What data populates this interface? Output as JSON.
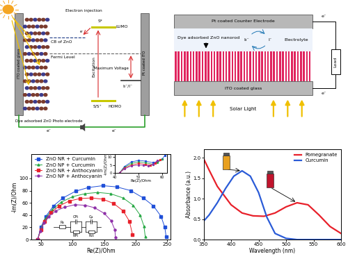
{
  "diagrams": {
    "cell_schematic": {
      "electron_injection": "Electron injection",
      "excited_state": "S*",
      "lumo": "LUMO",
      "cb": "CB of ZnO",
      "fermi": "Fermi Level",
      "max_voltage": "Maximum Voltage",
      "excitation": "Excitation",
      "redox": "I₃⁻/I⁻",
      "ground_state": "S/S⁺",
      "homo": "HOMO",
      "photoelectrode": "Dye adsorbed ZnO Photo electrode",
      "ito": "ITO coated glass",
      "pt": "Pt coated ITO",
      "electron": "e⁻"
    },
    "device_schematic": {
      "counter_electrode": "Pt coated Counter Electrode",
      "nanorod": "Dye adsorbed ZnO nanorod",
      "electrolyte": "Electrolyte",
      "redox_ox": "I₃⁻",
      "redox_red": "I⁻",
      "load": "Load",
      "ito": "ITO coated glass",
      "light": "Solar Light",
      "electron": "e⁻"
    },
    "equivalent_circuit": {
      "rs": "Rs",
      "c1": "CPt",
      "r1": "RPt",
      "c2": "Cμ",
      "r2": "Rct"
    }
  },
  "chart_data": [
    {
      "type": "line",
      "x_label": "Re(Z)/Ohm",
      "y_label": "-Im(Z)/Ohm",
      "xlim": [
        35,
        255
      ],
      "xticks": [
        50,
        100,
        150,
        200,
        250
      ],
      "ylim": [
        0,
        140
      ],
      "yticks": [
        0,
        20,
        40,
        60,
        80,
        100
      ],
      "legend": "upper left",
      "series": [
        {
          "name": "ZnO NR + Curcumin",
          "color": "#1f4fd8",
          "marker": "square",
          "x": [
            45,
            50,
            58,
            70,
            85,
            105,
            125,
            148,
            170,
            192,
            212,
            228,
            240,
            246,
            248
          ],
          "values": [
            0,
            20,
            38,
            55,
            68,
            79,
            85,
            88,
            86,
            80,
            68,
            55,
            38,
            20,
            5
          ]
        },
        {
          "name": "ZnO NP + Curcumin",
          "color": "#27a844",
          "marker": "triangle",
          "x": [
            45,
            50,
            57,
            68,
            82,
            100,
            120,
            140,
            160,
            180,
            196,
            207,
            213,
            215
          ],
          "values": [
            0,
            18,
            34,
            49,
            61,
            70,
            75,
            77,
            75,
            68,
            56,
            40,
            22,
            5
          ]
        },
        {
          "name": "ZnO NR + Anthocyanin",
          "color": "#e8202a",
          "marker": "square",
          "x": [
            45,
            50,
            56,
            66,
            79,
            95,
            112,
            130,
            148,
            165,
            180,
            190,
            195
          ],
          "values": [
            0,
            16,
            30,
            44,
            55,
            63,
            67,
            68,
            66,
            59,
            47,
            30,
            8
          ]
        },
        {
          "name": "ZnO NP + Anthocyanin",
          "color": "#8e2fa8",
          "marker": "circle",
          "x": [
            45,
            49,
            55,
            63,
            74,
            88,
            104,
            120,
            135,
            150,
            161,
            167,
            168
          ],
          "values": [
            0,
            14,
            27,
            38,
            47,
            53,
            57,
            56,
            52,
            43,
            31,
            16,
            4
          ]
        }
      ]
    },
    {
      "type": "line",
      "x_label": "Re(Z)/Ohm",
      "y_label": "-Im(Z)/Ohm",
      "xlim": [
        40,
        62
      ],
      "xticks": [
        40,
        50,
        60
      ],
      "ylim": [
        0,
        12
      ],
      "yticks": [
        0,
        5,
        10
      ],
      "series": [
        {
          "color": "#1f4fd8",
          "marker": "square",
          "x": [
            42,
            44,
            47,
            50,
            53,
            56,
            58,
            60,
            61
          ],
          "values": [
            0,
            4,
            7,
            8,
            7.5,
            6.5,
            7,
            9,
            11
          ]
        },
        {
          "color": "#27a844",
          "marker": "triangle",
          "x": [
            42,
            44,
            47,
            50,
            53,
            56,
            58,
            60
          ],
          "values": [
            0,
            3.5,
            6,
            7,
            6.5,
            5.5,
            6.5,
            9
          ]
        },
        {
          "color": "#e8202a",
          "marker": "square",
          "x": [
            42,
            44,
            47,
            50,
            53,
            55,
            57,
            59
          ],
          "values": [
            0,
            3,
            5,
            6,
            5.5,
            5,
            6,
            8.5
          ]
        },
        {
          "color": "#8e2fa8",
          "marker": "circle",
          "x": [
            42,
            44,
            47,
            50,
            52,
            54,
            56,
            58
          ],
          "values": [
            0,
            2.5,
            4.5,
            5,
            4.8,
            4.5,
            5.5,
            8
          ]
        }
      ]
    },
    {
      "type": "line",
      "x_label": "Wavelength (nm)",
      "y_label": "Absorbance (a.u.)",
      "xlim": [
        350,
        600
      ],
      "xticks": [
        350,
        400,
        450,
        500,
        550,
        600
      ],
      "ylim": [
        0,
        2.2
      ],
      "yticks": [
        {
          "value": 0,
          "label": "0.0"
        },
        0.5,
        {
          "value": 1,
          "label": "1.0"
        },
        1.5,
        {
          "value": 2,
          "label": "2.0"
        }
      ],
      "legend": "upper right",
      "series": [
        {
          "name": "Pomegranate",
          "color": "#e8202a",
          "x": [
            350,
            360,
            375,
            400,
            420,
            440,
            460,
            480,
            500,
            520,
            540,
            560,
            580,
            600
          ],
          "values": [
            1.98,
            1.7,
            1.3,
            0.85,
            0.65,
            0.58,
            0.57,
            0.65,
            0.8,
            0.9,
            0.85,
            0.6,
            0.32,
            0.15
          ]
        },
        {
          "name": "Curcumin",
          "color": "#2a5bd7",
          "x": [
            350,
            360,
            375,
            390,
            405,
            420,
            435,
            450,
            465,
            480,
            500,
            520,
            550,
            600
          ],
          "values": [
            0.45,
            0.6,
            0.9,
            1.25,
            1.55,
            1.68,
            1.55,
            1.15,
            0.55,
            0.15,
            0.03,
            0.0,
            0.0,
            0.0
          ]
        }
      ]
    }
  ]
}
